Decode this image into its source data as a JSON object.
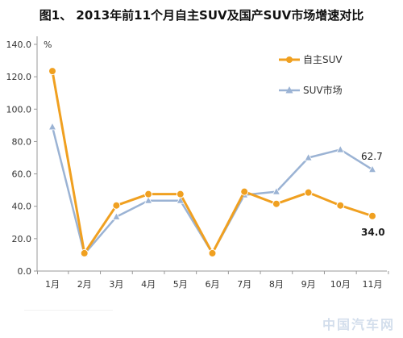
{
  "title": "图1、 2013年前11个月自主SUV及国产SUV市场增速对比",
  "chart_data": {
    "type": "line",
    "title": "图1、 2013年前11个月自主SUV及国产SUV市场增速对比",
    "y_unit": "%",
    "ylim": [
      0,
      140
    ],
    "yticks": [
      "0.0",
      "20.0",
      "40.0",
      "60.0",
      "80.0",
      "100.0",
      "120.0",
      "140.0"
    ],
    "categories": [
      "1月",
      "2月",
      "3月",
      "4月",
      "5月",
      "6月",
      "7月",
      "8月",
      "9月",
      "10月",
      "11月"
    ],
    "series": [
      {
        "name": "自主SUV",
        "color": "#f0a020",
        "marker": "circle",
        "values": [
          123.5,
          11,
          40.5,
          47.5,
          47.5,
          11,
          49,
          41.5,
          48.5,
          40.5,
          34.0
        ]
      },
      {
        "name": "SUV市场",
        "color": "#9bb3d4",
        "marker": "triangle",
        "values": [
          89,
          10.5,
          33.5,
          43.5,
          43.5,
          11,
          47,
          49,
          70,
          75,
          62.7
        ]
      }
    ],
    "annotations": [
      {
        "text": "62.7",
        "series": "SUV市场",
        "index": 10
      },
      {
        "text": "34.0",
        "series": "自主SUV",
        "index": 10
      }
    ],
    "legend": "right",
    "grid": false
  },
  "watermark": "中国汽车网"
}
